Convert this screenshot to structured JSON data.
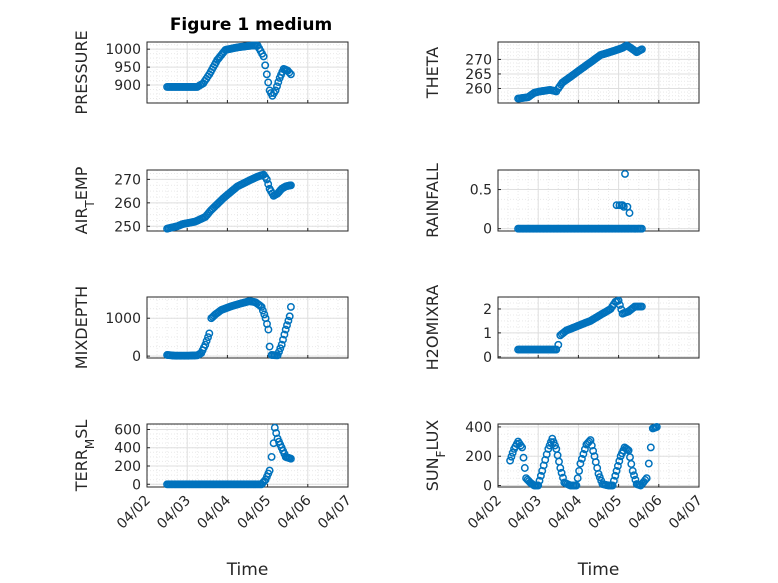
{
  "figure": {
    "title": "Figure 1 medium"
  },
  "chart_data": [
    {
      "type": "scatter",
      "ylabel": "PRESSURE",
      "xlabel": "",
      "ylim": [
        850,
        1020
      ],
      "yticks": [
        900,
        950,
        1000
      ],
      "xlim": [
        0,
        5
      ],
      "grid": true,
      "anchors": [
        [
          0.5,
          895
        ],
        [
          0.95,
          895
        ],
        [
          1.25,
          895
        ],
        [
          1.4,
          905
        ],
        [
          1.55,
          930
        ],
        [
          1.75,
          970
        ],
        [
          1.95,
          998
        ],
        [
          2.25,
          1005
        ],
        [
          2.6,
          1010
        ],
        [
          2.75,
          1010
        ],
        [
          2.9,
          980
        ],
        [
          2.98,
          930
        ],
        [
          3.05,
          885
        ],
        [
          3.12,
          870
        ],
        [
          3.2,
          885
        ],
        [
          3.3,
          920
        ],
        [
          3.4,
          945
        ],
        [
          3.5,
          940
        ],
        [
          3.58,
          930
        ]
      ]
    },
    {
      "type": "scatter",
      "ylabel": "THETA",
      "xlabel": "",
      "ylim": [
        255,
        276
      ],
      "yticks": [
        260,
        265,
        270
      ],
      "xlim": [
        0,
        5
      ],
      "grid": true,
      "anchors": [
        [
          0.5,
          256.5
        ],
        [
          0.75,
          257
        ],
        [
          0.9,
          258.5
        ],
        [
          1.05,
          259
        ],
        [
          1.3,
          259.5
        ],
        [
          1.45,
          259
        ],
        [
          1.5,
          260
        ],
        [
          1.6,
          262
        ],
        [
          1.9,
          265
        ],
        [
          2.2,
          268
        ],
        [
          2.55,
          271.5
        ],
        [
          2.9,
          273
        ],
        [
          3.1,
          274
        ],
        [
          3.2,
          274.8
        ],
        [
          3.3,
          274
        ],
        [
          3.45,
          272.5
        ],
        [
          3.58,
          273.5
        ]
      ]
    },
    {
      "type": "scatter",
      "ylabel": "AIR_TEMP",
      "xlabel": "",
      "ylim": [
        248,
        274
      ],
      "yticks": [
        250,
        260,
        270
      ],
      "xlim": [
        0,
        5
      ],
      "grid": true,
      "anchors": [
        [
          0.5,
          249
        ],
        [
          0.75,
          250
        ],
        [
          0.9,
          251
        ],
        [
          1.2,
          252
        ],
        [
          1.45,
          254
        ],
        [
          1.6,
          257
        ],
        [
          1.9,
          262
        ],
        [
          2.25,
          267
        ],
        [
          2.6,
          270
        ],
        [
          2.8,
          271.5
        ],
        [
          2.9,
          272
        ],
        [
          2.98,
          270
        ],
        [
          3.05,
          266
        ],
        [
          3.15,
          263
        ],
        [
          3.25,
          264
        ],
        [
          3.35,
          266
        ],
        [
          3.45,
          267
        ],
        [
          3.58,
          267.5
        ]
      ]
    },
    {
      "type": "scatter",
      "ylabel": "RAINFALL",
      "xlabel": "",
      "ylim": [
        -0.03,
        0.75
      ],
      "yticks": [
        0,
        0.5
      ],
      "xlim": [
        0,
        5
      ],
      "grid": true,
      "anchors": [
        [
          0.5,
          0
        ],
        [
          2.85,
          0
        ],
        [
          3.0,
          0
        ],
        [
          3.25,
          0
        ],
        [
          3.58,
          0
        ]
      ],
      "spikes": [
        [
          2.95,
          0.3
        ],
        [
          3.02,
          0.3
        ],
        [
          3.07,
          0.3
        ],
        [
          3.1,
          0.3
        ],
        [
          3.13,
          0.28
        ],
        [
          3.16,
          0.7
        ],
        [
          3.22,
          0.28
        ],
        [
          3.27,
          0.2
        ]
      ]
    },
    {
      "type": "scatter",
      "ylabel": "MIXDEPTH",
      "xlabel": "",
      "ylim": [
        -50,
        1560
      ],
      "yticks": [
        0,
        1000
      ],
      "xlim": [
        0,
        5
      ],
      "grid": true,
      "anchors": [
        [
          0.5,
          30
        ],
        [
          0.7,
          10
        ],
        [
          1.0,
          10
        ],
        [
          1.25,
          20
        ],
        [
          1.35,
          80
        ],
        [
          1.45,
          300
        ],
        [
          1.55,
          600
        ],
        [
          1.6,
          1000
        ],
        [
          1.7,
          1100
        ],
        [
          1.85,
          1220
        ],
        [
          2.05,
          1300
        ],
        [
          2.3,
          1380
        ],
        [
          2.55,
          1450
        ],
        [
          2.7,
          1420
        ],
        [
          2.85,
          1300
        ],
        [
          2.95,
          1000
        ],
        [
          3.02,
          700
        ],
        [
          3.05,
          250
        ],
        [
          3.1,
          30
        ],
        [
          3.25,
          20
        ],
        [
          3.35,
          300
        ],
        [
          3.45,
          700
        ],
        [
          3.55,
          1050
        ],
        [
          3.58,
          1300
        ]
      ]
    },
    {
      "type": "scatter",
      "ylabel": "H2OMIXRA",
      "xlabel": "",
      "ylim": [
        -0.05,
        2.5
      ],
      "yticks": [
        0,
        1,
        2
      ],
      "xlim": [
        0,
        5
      ],
      "grid": true,
      "anchors": [
        [
          0.5,
          0.3
        ],
        [
          1.45,
          0.3
        ],
        [
          1.5,
          0.5
        ],
        [
          1.55,
          0.9
        ],
        [
          1.7,
          1.1
        ],
        [
          2.0,
          1.3
        ],
        [
          2.3,
          1.5
        ],
        [
          2.6,
          1.8
        ],
        [
          2.8,
          2.0
        ],
        [
          2.92,
          2.3
        ],
        [
          3.0,
          2.35
        ],
        [
          3.1,
          1.8
        ],
        [
          3.25,
          1.9
        ],
        [
          3.4,
          2.1
        ],
        [
          3.58,
          2.1
        ]
      ]
    },
    {
      "type": "scatter",
      "ylabel": "TERR_MSL",
      "xlabel": "Time",
      "ylim": [
        -30,
        660
      ],
      "yticks": [
        0,
        200,
        400,
        600
      ],
      "xlim": [
        0,
        5
      ],
      "xticks": [
        "04/02",
        "04/03",
        "04/04",
        "04/05",
        "04/06",
        "04/07"
      ],
      "grid": true,
      "anchors": [
        [
          0.5,
          0
        ],
        [
          2.85,
          0
        ],
        [
          2.95,
          50
        ],
        [
          3.05,
          150
        ],
        [
          3.1,
          300
        ],
        [
          3.15,
          450
        ],
        [
          3.18,
          620
        ],
        [
          3.25,
          500
        ],
        [
          3.35,
          400
        ],
        [
          3.45,
          300
        ],
        [
          3.58,
          280
        ]
      ]
    },
    {
      "type": "scatter",
      "ylabel": "SUN_FLUX",
      "xlabel": "Time",
      "ylim": [
        -10,
        420
      ],
      "yticks": [
        0,
        200,
        400
      ],
      "xlim": [
        0,
        5
      ],
      "xticks": [
        "04/02",
        "04/03",
        "04/04",
        "04/05",
        "04/06",
        "04/07"
      ],
      "grid": true,
      "anchors": [
        [
          0.3,
          170
        ],
        [
          0.4,
          250
        ],
        [
          0.5,
          300
        ],
        [
          0.6,
          260
        ],
        [
          0.7,
          50
        ],
        [
          0.8,
          20
        ],
        [
          0.9,
          0
        ],
        [
          1.0,
          0
        ],
        [
          1.1,
          100
        ],
        [
          1.25,
          250
        ],
        [
          1.35,
          320
        ],
        [
          1.45,
          250
        ],
        [
          1.55,
          120
        ],
        [
          1.65,
          20
        ],
        [
          1.8,
          0
        ],
        [
          1.95,
          0
        ],
        [
          2.05,
          150
        ],
        [
          2.2,
          280
        ],
        [
          2.3,
          310
        ],
        [
          2.4,
          200
        ],
        [
          2.5,
          80
        ],
        [
          2.6,
          10
        ],
        [
          2.75,
          0
        ],
        [
          2.85,
          0
        ],
        [
          2.95,
          100
        ],
        [
          3.05,
          200
        ],
        [
          3.15,
          260
        ],
        [
          3.25,
          240
        ],
        [
          3.35,
          100
        ],
        [
          3.45,
          10
        ],
        [
          3.55,
          0
        ],
        [
          3.7,
          50
        ],
        [
          3.75,
          150
        ],
        [
          3.8,
          260
        ],
        [
          3.85,
          390
        ],
        [
          3.95,
          400
        ]
      ]
    }
  ]
}
